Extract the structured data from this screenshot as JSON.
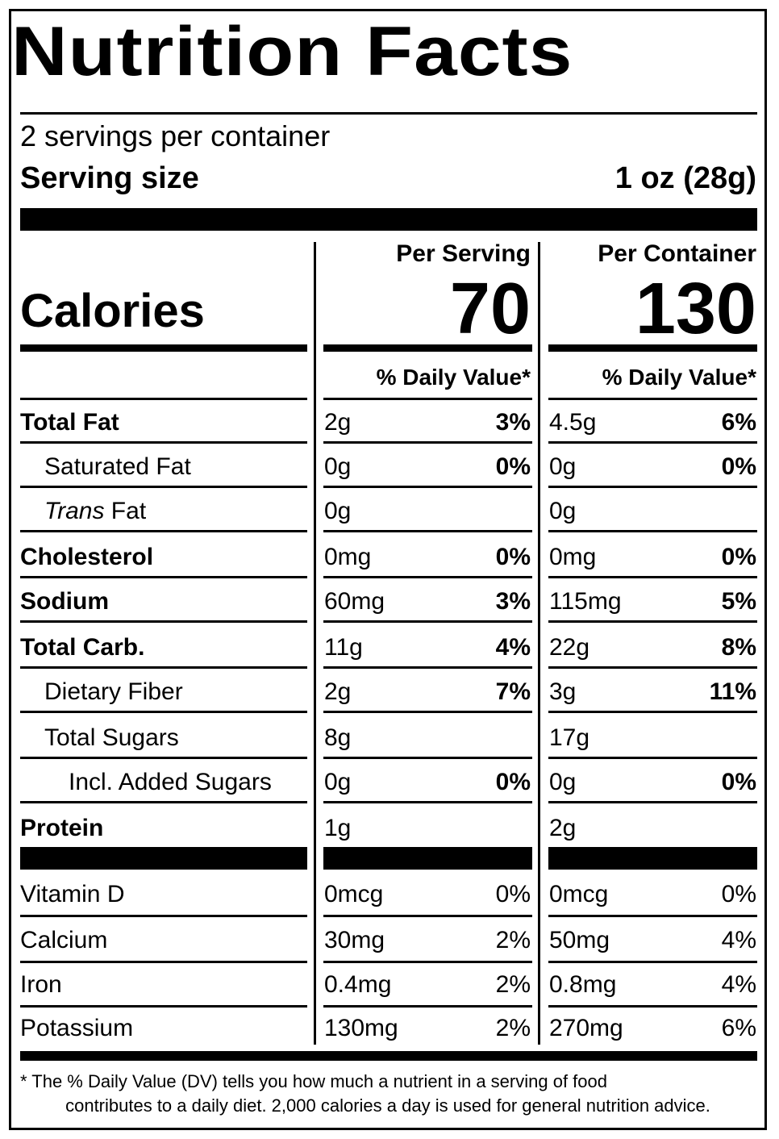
{
  "title": "Nutrition Facts",
  "servings_per_container": "2 servings per container",
  "serving_size_label": "Serving size",
  "serving_size_value": "1 oz (28g)",
  "columns": {
    "per_serving": "Per Serving",
    "per_container": "Per Container"
  },
  "calories": {
    "label": "Calories",
    "per_serving": "70",
    "per_container": "130"
  },
  "daily_value_header": "% Daily Value*",
  "nutrients": [
    {
      "name": "Total Fat",
      "bold": true,
      "indent": 0,
      "serving_amt": "2g",
      "serving_dv": "3%",
      "container_amt": "4.5g",
      "container_dv": "6%"
    },
    {
      "name": "Saturated Fat",
      "bold": false,
      "indent": 1,
      "serving_amt": "0g",
      "serving_dv": "0%",
      "container_amt": "0g",
      "container_dv": "0%"
    },
    {
      "name": "Trans Fat",
      "bold": false,
      "indent": 1,
      "serving_amt": "0g",
      "serving_dv": "",
      "container_amt": "0g",
      "container_dv": ""
    },
    {
      "name": "Cholesterol",
      "bold": true,
      "indent": 0,
      "serving_amt": "0mg",
      "serving_dv": "0%",
      "container_amt": "0mg",
      "container_dv": "0%"
    },
    {
      "name": "Sodium",
      "bold": true,
      "indent": 0,
      "serving_amt": "60mg",
      "serving_dv": "3%",
      "container_amt": "115mg",
      "container_dv": "5%"
    },
    {
      "name": "Total Carb.",
      "bold": true,
      "indent": 0,
      "serving_amt": "11g",
      "serving_dv": "4%",
      "container_amt": "22g",
      "container_dv": "8%"
    },
    {
      "name": "Dietary Fiber",
      "bold": false,
      "indent": 1,
      "serving_amt": "2g",
      "serving_dv": "7%",
      "container_amt": "3g",
      "container_dv": "11%"
    },
    {
      "name": "Total Sugars",
      "bold": false,
      "indent": 1,
      "serving_amt": "8g",
      "serving_dv": "",
      "container_amt": "17g",
      "container_dv": ""
    },
    {
      "name": "Incl. Added Sugars",
      "bold": false,
      "indent": 2,
      "serving_amt": "0g",
      "serving_dv": "0%",
      "container_amt": "0g",
      "container_dv": "0%"
    },
    {
      "name": "Protein",
      "bold": true,
      "indent": 0,
      "serving_amt": "1g",
      "serving_dv": "",
      "container_amt": "2g",
      "container_dv": ""
    }
  ],
  "trans_fat_italic_part": "Trans",
  "trans_fat_rest": " Fat",
  "vitamins": [
    {
      "name": "Vitamin D",
      "serving_amt": "0mcg",
      "serving_dv": "0%",
      "container_amt": "0mcg",
      "container_dv": "0%"
    },
    {
      "name": "Calcium",
      "serving_amt": "30mg",
      "serving_dv": "2%",
      "container_amt": "50mg",
      "container_dv": "4%"
    },
    {
      "name": "Iron",
      "serving_amt": "0.4mg",
      "serving_dv": "2%",
      "container_amt": "0.8mg",
      "container_dv": "4%"
    },
    {
      "name": "Potassium",
      "serving_amt": "130mg",
      "serving_dv": "2%",
      "container_amt": "270mg",
      "container_dv": "6%"
    }
  ],
  "footnote_line1": "* The % Daily Value (DV) tells you how much a nutrient in a serving of food",
  "footnote_line2": "contributes to a daily diet. 2,000 calories a day is used for general nutrition advice."
}
